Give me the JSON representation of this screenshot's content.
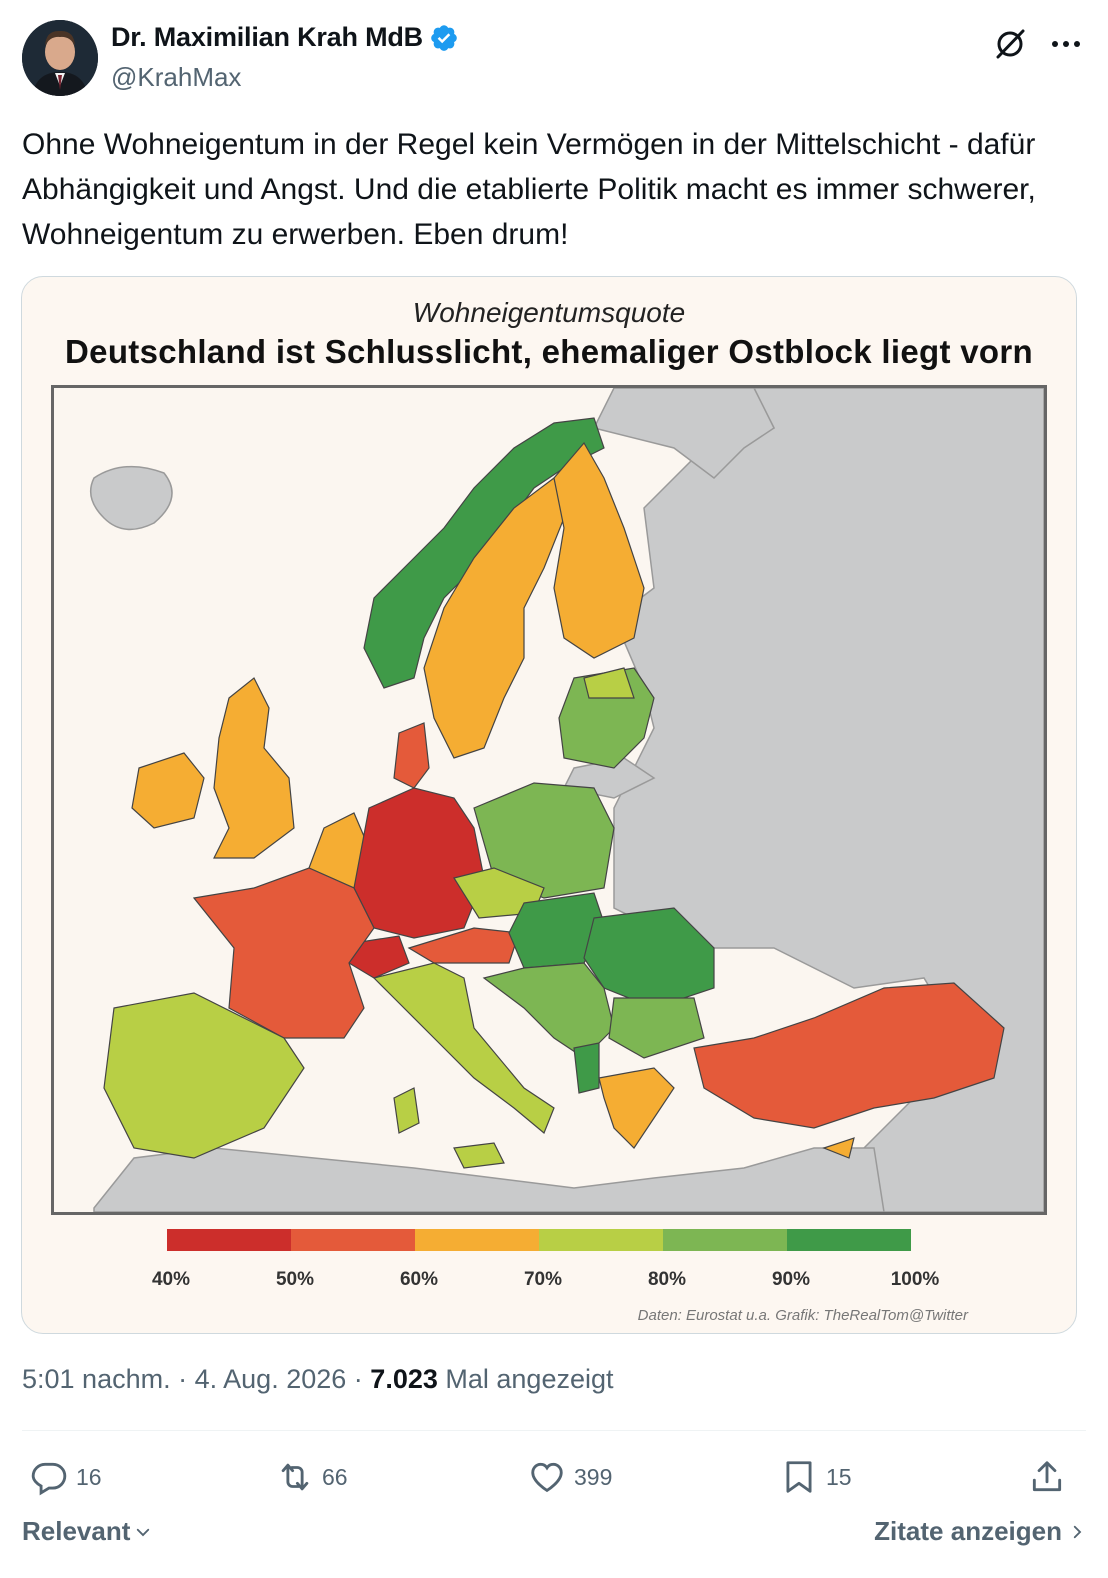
{
  "author": {
    "display_name": "Dr. Maximilian Krah MdB",
    "handle": "@KrahMax"
  },
  "icons": {
    "verified": "verified-badge-icon",
    "grok": "grok-icon",
    "more": "more-icon",
    "reply": "reply-icon",
    "repost": "repost-icon",
    "like": "like-icon",
    "bookmark": "bookmark-icon",
    "share": "share-icon"
  },
  "tweet": {
    "text": "Ohne Wohneigentum in der Regel kein Vermögen in der Mittelschicht - dafür Abhängigkeit und Angst. Und die etablierte Politik macht es immer schwerer, Wohneigentum zu erwerben. Eben drum!"
  },
  "media": {
    "subtitle": "Wohneigentumsquote",
    "title": "Deutschland ist Schlusslicht, ehemaliger Ostblock liegt vorn",
    "legend_labels": [
      "40%",
      "50%",
      "60%",
      "70%",
      "80%",
      "90%",
      "100%"
    ],
    "legend_colors": [
      "#cc2e2b",
      "#e45a3a",
      "#f5ad33",
      "#b8cf45",
      "#7db653",
      "#3f9a48"
    ],
    "source": "Daten: Eurostat u.a.  Grafik: TheRealTom@Twitter"
  },
  "meta": {
    "time": "5:01 nachm.",
    "date": "4. Aug. 2026",
    "views": "7.023",
    "views_label": "Mal angezeigt",
    "separator": "·"
  },
  "actions": {
    "replies": "16",
    "reposts": "66",
    "likes": "399",
    "bookmarks": "15"
  },
  "footer": {
    "sort_label": "Relevant",
    "quotes_label": "Zitate anzeigen"
  },
  "colors": {
    "text_primary": "#0f1419",
    "text_secondary": "#536471",
    "verified_blue": "#1d9bf0",
    "border": "#cfd9de"
  }
}
